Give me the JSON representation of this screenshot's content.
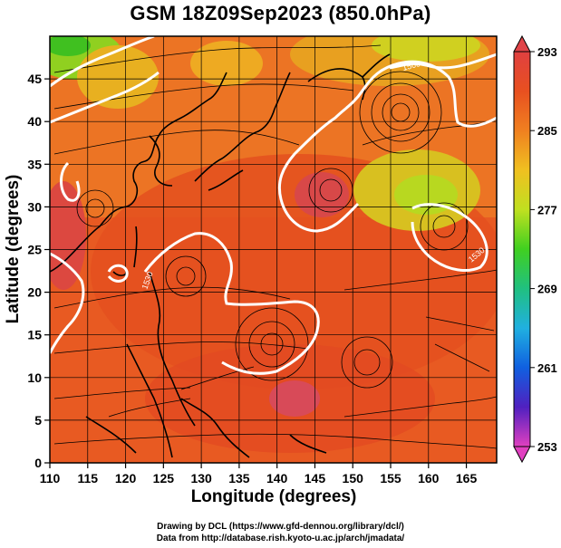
{
  "title": "GSM 18Z09Sep2023 (850.0hPa)",
  "x_axis": {
    "label": "Longitude (degrees)",
    "ticks": [
      "110",
      "115",
      "120",
      "125",
      "130",
      "135",
      "140",
      "145",
      "150",
      "155",
      "160",
      "165"
    ]
  },
  "y_axis": {
    "label": "Latitude  (degrees)",
    "ticks": [
      "0",
      "5",
      "10",
      "15",
      "20",
      "25",
      "30",
      "35",
      "40",
      "45"
    ]
  },
  "colorbar": {
    "ticks": [
      "253",
      "261",
      "269",
      "277",
      "285",
      "293"
    ],
    "colors": [
      "#e040c0",
      "#5020c0",
      "#1060e0",
      "#20b0e0",
      "#20c080",
      "#40d020",
      "#c0e020",
      "#f0c020",
      "#f08020",
      "#e85020",
      "#e04040"
    ]
  },
  "contour_labels": [
    "1530",
    "1560"
  ],
  "credits": {
    "line1": "Drawing by DCL (https://www.gfd-dennou.org/library/dcl/)",
    "line2": "Data from http://database.rish.kyoto-u.ac.jp/arch/jmadata/"
  }
}
